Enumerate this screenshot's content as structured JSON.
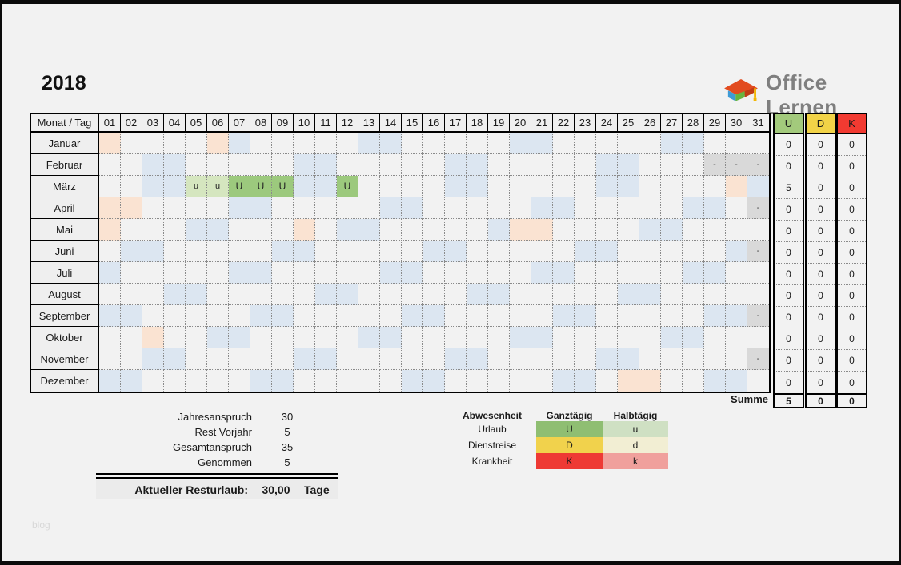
{
  "title": "2018",
  "logo": {
    "text": "Office Lernen"
  },
  "watermark": "blog",
  "colors": {
    "weekend": "#dce6f1",
    "holiday": "#fae3d2",
    "invalid": "#d9d9d9",
    "vacation_full": "#9cc97d",
    "vacation_half": "#d5e6bf",
    "header_u": "#a3ca7c",
    "header_d": "#f2d347",
    "header_k": "#f23a31"
  },
  "table": {
    "corner_label": "Monat / Tag",
    "day_headers": [
      "01",
      "02",
      "03",
      "04",
      "05",
      "06",
      "07",
      "08",
      "09",
      "10",
      "11",
      "12",
      "13",
      "14",
      "15",
      "16",
      "17",
      "18",
      "19",
      "20",
      "21",
      "22",
      "23",
      "24",
      "25",
      "26",
      "27",
      "28",
      "29",
      "30",
      "31"
    ],
    "invalid_mark": "-",
    "absence_columns": [
      {
        "key": "u",
        "label": "U",
        "color": "#a3ca7c"
      },
      {
        "key": "d",
        "label": "D",
        "color": "#f2d347"
      },
      {
        "key": "k",
        "label": "K",
        "color": "#f23a31"
      }
    ],
    "months": [
      {
        "name": "Januar",
        "holiday": [
          1,
          6
        ],
        "weekend": [
          7,
          13,
          14,
          20,
          21,
          27,
          28
        ],
        "invalid": [],
        "vacation_full": [],
        "vacation_half": [],
        "counts": [
          "0",
          "0",
          "0"
        ]
      },
      {
        "name": "Februar",
        "holiday": [],
        "weekend": [
          3,
          4,
          10,
          11,
          17,
          18,
          24,
          25
        ],
        "invalid": [
          29,
          30,
          31
        ],
        "vacation_full": [],
        "vacation_half": [],
        "counts": [
          "0",
          "0",
          "0"
        ]
      },
      {
        "name": "März",
        "holiday": [
          30
        ],
        "weekend": [
          3,
          4,
          10,
          11,
          17,
          18,
          24,
          25,
          31
        ],
        "invalid": [],
        "vacation_full": [
          7,
          8,
          9,
          12
        ],
        "vacation_half": [
          5,
          6
        ],
        "counts": [
          "5",
          "0",
          "0"
        ]
      },
      {
        "name": "April",
        "holiday": [
          1,
          2
        ],
        "weekend": [
          7,
          8,
          14,
          15,
          21,
          22,
          28,
          29
        ],
        "invalid": [
          31
        ],
        "vacation_full": [],
        "vacation_half": [],
        "counts": [
          "0",
          "0",
          "0"
        ]
      },
      {
        "name": "Mai",
        "holiday": [
          1,
          10,
          20,
          21
        ],
        "weekend": [
          5,
          6,
          12,
          13,
          19,
          26,
          27
        ],
        "invalid": [],
        "vacation_full": [],
        "vacation_half": [],
        "counts": [
          "0",
          "0",
          "0"
        ]
      },
      {
        "name": "Juni",
        "holiday": [],
        "weekend": [
          2,
          3,
          9,
          10,
          16,
          17,
          23,
          24,
          30
        ],
        "invalid": [
          31
        ],
        "vacation_full": [],
        "vacation_half": [],
        "counts": [
          "0",
          "0",
          "0"
        ]
      },
      {
        "name": "Juli",
        "holiday": [],
        "weekend": [
          1,
          7,
          8,
          14,
          15,
          21,
          22,
          28,
          29
        ],
        "invalid": [],
        "vacation_full": [],
        "vacation_half": [],
        "counts": [
          "0",
          "0",
          "0"
        ]
      },
      {
        "name": "August",
        "holiday": [],
        "weekend": [
          4,
          5,
          11,
          12,
          18,
          19,
          25,
          26
        ],
        "invalid": [],
        "vacation_full": [],
        "vacation_half": [],
        "counts": [
          "0",
          "0",
          "0"
        ]
      },
      {
        "name": "September",
        "holiday": [],
        "weekend": [
          1,
          2,
          8,
          9,
          15,
          16,
          22,
          23,
          29,
          30
        ],
        "invalid": [
          31
        ],
        "vacation_full": [],
        "vacation_half": [],
        "counts": [
          "0",
          "0",
          "0"
        ]
      },
      {
        "name": "Oktober",
        "holiday": [
          3
        ],
        "weekend": [
          6,
          7,
          13,
          14,
          20,
          21,
          27,
          28
        ],
        "invalid": [],
        "vacation_full": [],
        "vacation_half": [],
        "counts": [
          "0",
          "0",
          "0"
        ]
      },
      {
        "name": "November",
        "holiday": [],
        "weekend": [
          3,
          4,
          10,
          11,
          17,
          18,
          24,
          25
        ],
        "invalid": [
          31
        ],
        "vacation_full": [],
        "vacation_half": [],
        "counts": [
          "0",
          "0",
          "0"
        ]
      },
      {
        "name": "Dezember",
        "holiday": [
          25,
          26
        ],
        "weekend": [
          1,
          2,
          8,
          9,
          15,
          16,
          22,
          23,
          29,
          30
        ],
        "invalid": [],
        "vacation_full": [],
        "vacation_half": [],
        "counts": [
          "0",
          "0",
          "0"
        ]
      }
    ],
    "summe_label": "Summe",
    "summe_values": [
      "5",
      "0",
      "0"
    ]
  },
  "summary": {
    "rows": [
      {
        "label": "Jahresanspruch",
        "value": "30"
      },
      {
        "label": "Rest Vorjahr",
        "value": "5"
      },
      {
        "label": "Gesamtanspruch",
        "value": "35"
      },
      {
        "label": "Genommen",
        "value": "5"
      }
    ],
    "result": {
      "label": "Aktueller Resturlaub:",
      "value": "30,00",
      "unit": "Tage"
    }
  },
  "legend": {
    "headers": {
      "col1": "Abwesenheit",
      "col2": "Ganztägig",
      "col3": "Halbtägig"
    },
    "rows": [
      {
        "label": "Urlaub",
        "full": "U",
        "half": "u",
        "full_color": "#8fbe72",
        "half_color": "#cfe0c3"
      },
      {
        "label": "Dienstreise",
        "full": "D",
        "half": "d",
        "full_color": "#f1d24c",
        "half_color": "#f2eed3"
      },
      {
        "label": "Krankheit",
        "full": "K",
        "half": "k",
        "full_color": "#ee3a34",
        "half_color": "#f0a09c"
      }
    ]
  }
}
